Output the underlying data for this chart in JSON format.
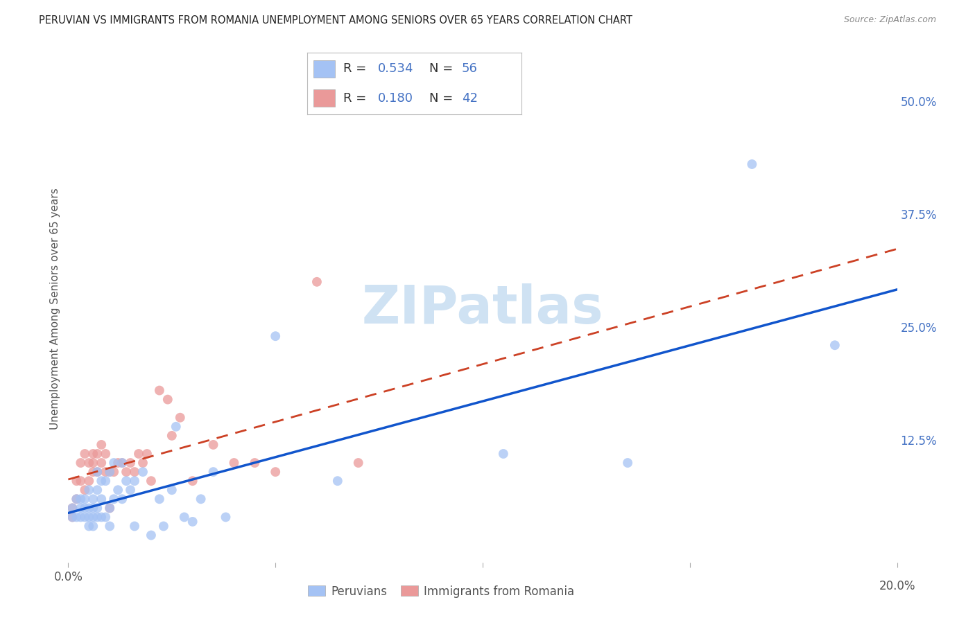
{
  "title": "PERUVIAN VS IMMIGRANTS FROM ROMANIA UNEMPLOYMENT AMONG SENIORS OVER 65 YEARS CORRELATION CHART",
  "source": "Source: ZipAtlas.com",
  "ylabel": "Unemployment Among Seniors over 65 years",
  "xlim": [
    0.0,
    0.2
  ],
  "ylim": [
    -0.01,
    0.55
  ],
  "background_color": "#ffffff",
  "grid_color": "#d0d0d0",
  "peruvians_color": "#a4c2f4",
  "peruvians_edge_color": "#6d9eeb",
  "romania_color": "#ea9999",
  "romania_edge_color": "#e06666",
  "peruvians_line_color": "#1155cc",
  "romania_line_color": "#cc4125",
  "legend_R_peru": "0.534",
  "legend_N_peru": "56",
  "legend_R_rom": "0.180",
  "legend_N_rom": "42",
  "peruvians_x": [
    0.001,
    0.001,
    0.002,
    0.002,
    0.003,
    0.003,
    0.003,
    0.004,
    0.004,
    0.004,
    0.005,
    0.005,
    0.005,
    0.005,
    0.006,
    0.006,
    0.006,
    0.006,
    0.007,
    0.007,
    0.007,
    0.007,
    0.008,
    0.008,
    0.008,
    0.009,
    0.009,
    0.01,
    0.01,
    0.01,
    0.011,
    0.011,
    0.012,
    0.013,
    0.013,
    0.014,
    0.015,
    0.016,
    0.016,
    0.018,
    0.02,
    0.022,
    0.023,
    0.025,
    0.026,
    0.028,
    0.03,
    0.032,
    0.035,
    0.038,
    0.05,
    0.065,
    0.105,
    0.135,
    0.165,
    0.185
  ],
  "peruvians_y": [
    0.04,
    0.05,
    0.04,
    0.06,
    0.04,
    0.05,
    0.06,
    0.04,
    0.05,
    0.06,
    0.03,
    0.04,
    0.05,
    0.07,
    0.03,
    0.04,
    0.05,
    0.06,
    0.04,
    0.05,
    0.07,
    0.09,
    0.04,
    0.06,
    0.08,
    0.04,
    0.08,
    0.03,
    0.05,
    0.09,
    0.06,
    0.1,
    0.07,
    0.06,
    0.1,
    0.08,
    0.07,
    0.03,
    0.08,
    0.09,
    0.02,
    0.06,
    0.03,
    0.07,
    0.14,
    0.04,
    0.035,
    0.06,
    0.09,
    0.04,
    0.24,
    0.08,
    0.11,
    0.1,
    0.43,
    0.23
  ],
  "romania_x": [
    0.001,
    0.001,
    0.002,
    0.002,
    0.003,
    0.003,
    0.004,
    0.004,
    0.005,
    0.005,
    0.006,
    0.006,
    0.006,
    0.007,
    0.007,
    0.008,
    0.008,
    0.009,
    0.009,
    0.01,
    0.01,
    0.011,
    0.012,
    0.013,
    0.014,
    0.015,
    0.016,
    0.017,
    0.018,
    0.019,
    0.02,
    0.022,
    0.024,
    0.025,
    0.027,
    0.03,
    0.035,
    0.04,
    0.045,
    0.05,
    0.06,
    0.07
  ],
  "romania_y": [
    0.04,
    0.05,
    0.06,
    0.08,
    0.08,
    0.1,
    0.07,
    0.11,
    0.08,
    0.1,
    0.09,
    0.1,
    0.11,
    0.09,
    0.11,
    0.1,
    0.12,
    0.09,
    0.11,
    0.05,
    0.09,
    0.09,
    0.1,
    0.1,
    0.09,
    0.1,
    0.09,
    0.11,
    0.1,
    0.11,
    0.08,
    0.18,
    0.17,
    0.13,
    0.15,
    0.08,
    0.12,
    0.1,
    0.1,
    0.09,
    0.3,
    0.1
  ],
  "watermark_text": "ZIPatlas",
  "watermark_color": "#cfe2f3",
  "watermark_fontsize": 55,
  "y_ticks_right": [
    0.0,
    0.125,
    0.25,
    0.375,
    0.5
  ],
  "y_tick_labels_right": [
    "",
    "12.5%",
    "25.0%",
    "37.5%",
    "50.0%"
  ],
  "x_ticks": [
    0.0,
    0.05,
    0.1,
    0.15,
    0.2
  ]
}
